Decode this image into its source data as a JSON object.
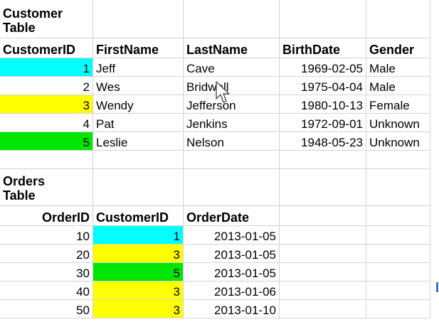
{
  "customer_table": {
    "title": "Customer\nTable",
    "headers": [
      "CustomerID",
      "FirstName",
      "LastName",
      "BirthDate",
      "Gender"
    ],
    "rows": [
      {
        "id": "1",
        "first": "Jeff",
        "last": "Cave",
        "birth": "1969-02-05",
        "gender": "Male",
        "highlight": "#00ffff"
      },
      {
        "id": "2",
        "first": "Wes",
        "last": "Bridwell",
        "birth": "1975-04-04",
        "gender": "Male",
        "highlight": ""
      },
      {
        "id": "3",
        "first": "Wendy",
        "last": "Jefferson",
        "birth": "1980-10-13",
        "gender": "Female",
        "highlight": "#ffff00"
      },
      {
        "id": "4",
        "first": "Pat",
        "last": "Jenkins",
        "birth": "1972-09-01",
        "gender": "Unknown",
        "highlight": ""
      },
      {
        "id": "5",
        "first": "Leslie",
        "last": "Nelson",
        "birth": "1948-05-23",
        "gender": "Unknown",
        "highlight": "#00e600"
      }
    ]
  },
  "orders_table": {
    "title": "Orders\nTable",
    "headers": [
      "OrderID",
      "CustomerID",
      "OrderDate"
    ],
    "rows": [
      {
        "order_id": "10",
        "customer_id": "1",
        "date": "2013-01-05",
        "highlight": "#00ffff"
      },
      {
        "order_id": "20",
        "customer_id": "3",
        "date": "2013-01-05",
        "highlight": "#ffff00"
      },
      {
        "order_id": "30",
        "customer_id": "5",
        "date": "2013-01-05",
        "highlight": "#00e600"
      },
      {
        "order_id": "40",
        "customer_id": "3",
        "date": "2013-01-06",
        "highlight": "#ffff00"
      },
      {
        "order_id": "50",
        "customer_id": "3",
        "date": "2013-01-10",
        "highlight": "#ffff00"
      }
    ]
  },
  "cursor_icon": "mouse-pointer-icon"
}
